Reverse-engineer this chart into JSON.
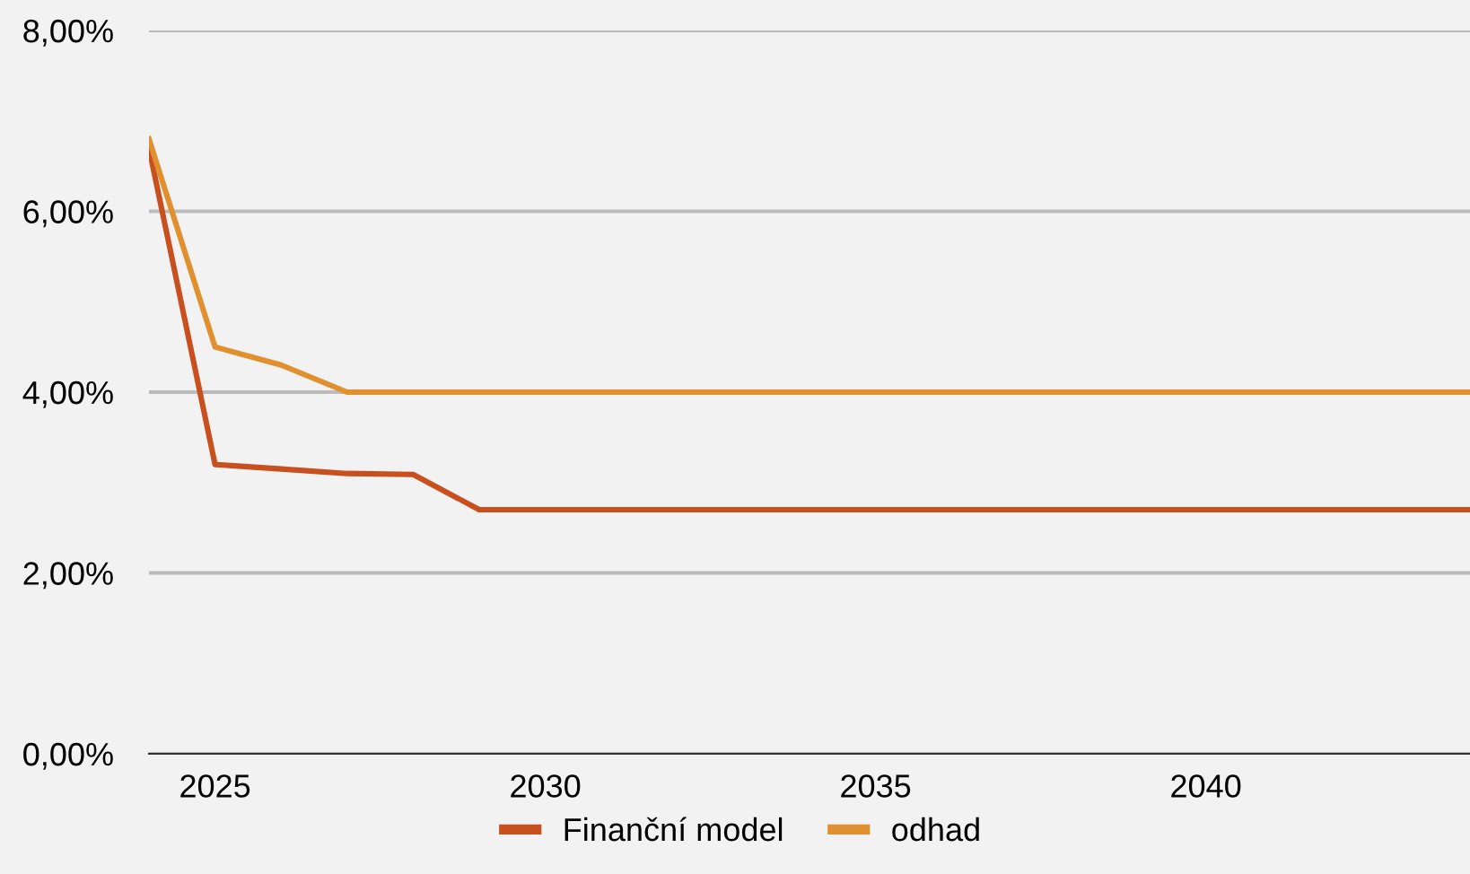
{
  "chart_data": {
    "type": "line",
    "x": [
      2024,
      2025,
      2026,
      2027,
      2028,
      2029,
      2030,
      2031,
      2032,
      2033,
      2034,
      2035,
      2036,
      2037,
      2038,
      2039,
      2040,
      2041,
      2042,
      2043,
      2044
    ],
    "series": [
      {
        "name": "Finanční model",
        "color": "#c8501e",
        "values": [
          6.7,
          3.2,
          3.15,
          3.1,
          3.09,
          2.7,
          2.7,
          2.7,
          2.7,
          2.7,
          2.7,
          2.7,
          2.7,
          2.7,
          2.7,
          2.7,
          2.7,
          2.7,
          2.7,
          2.7,
          2.7
        ]
      },
      {
        "name": "odhad",
        "color": "#e0902e",
        "values": [
          6.8,
          4.5,
          4.3,
          4.0,
          4.0,
          4.0,
          4.0,
          4.0,
          4.0,
          4.0,
          4.0,
          4.0,
          4.0,
          4.0,
          4.0,
          4.0,
          4.0,
          4.0,
          4.0,
          4.0,
          4.0
        ]
      }
    ],
    "xlim": [
      2024,
      2044
    ],
    "xticks": [
      2025,
      2030,
      2035,
      2040
    ],
    "ylim": [
      0,
      8
    ],
    "yticks": [
      {
        "value": 0,
        "label": "0,00%"
      },
      {
        "value": 2,
        "label": "2,00%"
      },
      {
        "value": 4,
        "label": "4,00%"
      },
      {
        "value": 6,
        "label": "6,00%"
      },
      {
        "value": 8,
        "label": "8,00%"
      }
    ],
    "grid": "y",
    "legend": "bottom",
    "marker": "none",
    "line_style": "solid"
  }
}
